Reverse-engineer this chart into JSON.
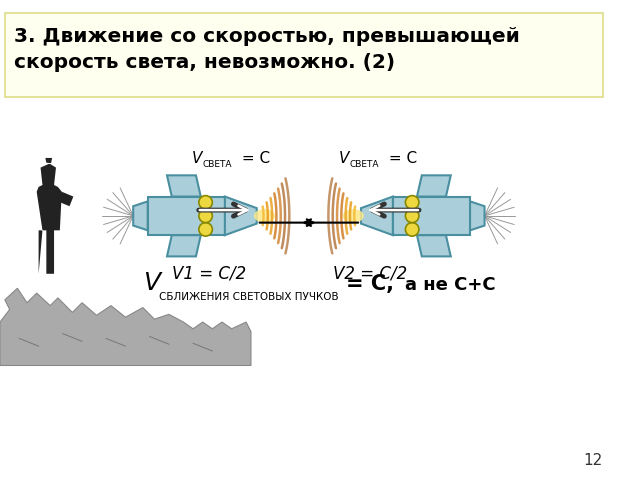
{
  "title_line1": "3. Движение со скоростью, превышающей",
  "title_line2": "скорость света, невозможно. (2)",
  "title_bg": "#FFFFF0",
  "title_border": "#DDDD88",
  "bg_color": "#FFFFFF",
  "rocket_color": "#AACFDA",
  "rocket_outline": "#4A8FA0",
  "beam_colors": [
    "#F5C040",
    "#E8A020",
    "#CC7010",
    "#A05008"
  ],
  "beam_glow": "#FDE88A",
  "arrow_color": "#000000",
  "label_v1": "V1 = C/2",
  "label_v2": "V2 = C/2",
  "page_num": "12",
  "dot_color": "#EED840",
  "dot_outline": "#888800",
  "person_color": "#222222",
  "rock_color": "#AAAAAA",
  "rock_outline": "#888888"
}
